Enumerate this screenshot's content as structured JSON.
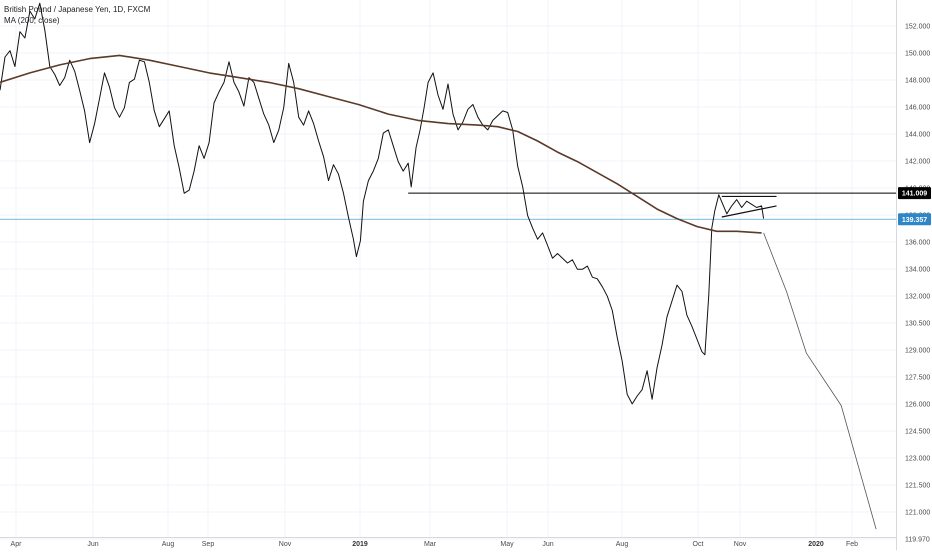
{
  "legend": {
    "title": "British Pound / Japanese Yen, 1D, FXCM",
    "ma": "MA (200, close)"
  },
  "chart_data": {
    "type": "line",
    "title": "British Pound / Japanese Yen, 1D, FXCM",
    "ylim": [
      119.3,
      153.2
    ],
    "y_ticks": [
      "152.000",
      "150.000",
      "148.000",
      "146.000",
      "144.000",
      "142.000",
      "140.000",
      "138.000",
      "136.000",
      "134.000",
      "132.000",
      "130.500",
      "129.000",
      "127.500",
      "126.000",
      "124.500",
      "123.000",
      "121.500",
      "121.000",
      "119.970"
    ],
    "x_ticks": [
      {
        "label": "Apr",
        "bold": false
      },
      {
        "label": "Jun",
        "bold": false
      },
      {
        "label": "Aug",
        "bold": false
      },
      {
        "label": "Sep",
        "bold": false
      },
      {
        "label": "Nov",
        "bold": false
      },
      {
        "label": "2019",
        "bold": true
      },
      {
        "label": "Mar",
        "bold": false
      },
      {
        "label": "May",
        "bold": false
      },
      {
        "label": "Jun",
        "bold": false
      },
      {
        "label": "Aug",
        "bold": false
      },
      {
        "label": "Oct",
        "bold": false
      },
      {
        "label": "Nov",
        "bold": false
      },
      {
        "label": "2020",
        "bold": true
      },
      {
        "label": "Feb",
        "bold": false
      }
    ],
    "series": [
      {
        "values": [
          [
            0,
            147.5
          ],
          [
            5,
            149.6
          ],
          [
            10,
            150.0
          ],
          [
            15,
            149.0
          ],
          [
            20,
            151.2
          ],
          [
            25,
            150.8
          ],
          [
            30,
            152.5
          ],
          [
            35,
            152.0
          ],
          [
            40,
            153.0
          ],
          [
            45,
            151.3
          ],
          [
            50,
            149.0
          ],
          [
            55,
            148.5
          ],
          [
            60,
            147.8
          ],
          [
            65,
            148.3
          ],
          [
            70,
            149.4
          ],
          [
            75,
            148.7
          ],
          [
            80,
            147.5
          ],
          [
            85,
            146.2
          ],
          [
            90,
            144.2
          ],
          [
            95,
            145.4
          ],
          [
            100,
            147.0
          ],
          [
            105,
            148.6
          ],
          [
            110,
            147.7
          ],
          [
            115,
            146.4
          ],
          [
            120,
            145.8
          ],
          [
            125,
            146.4
          ],
          [
            130,
            148.0
          ],
          [
            135,
            148.2
          ],
          [
            140,
            149.4
          ],
          [
            145,
            149.3
          ],
          [
            150,
            148.0
          ],
          [
            155,
            146.2
          ],
          [
            160,
            145.2
          ],
          [
            165,
            145.7
          ],
          [
            170,
            146.2
          ],
          [
            175,
            144.0
          ],
          [
            180,
            142.6
          ],
          [
            185,
            141.0
          ],
          [
            190,
            141.2
          ],
          [
            195,
            142.4
          ],
          [
            200,
            144.0
          ],
          [
            205,
            143.2
          ],
          [
            210,
            144.2
          ],
          [
            215,
            146.7
          ],
          [
            220,
            147.4
          ],
          [
            225,
            148.0
          ],
          [
            230,
            149.3
          ],
          [
            235,
            148.0
          ],
          [
            240,
            147.4
          ],
          [
            245,
            146.5
          ],
          [
            250,
            148.3
          ],
          [
            255,
            148.0
          ],
          [
            260,
            147.0
          ],
          [
            265,
            146.0
          ],
          [
            270,
            145.3
          ],
          [
            275,
            144.2
          ],
          [
            280,
            145.0
          ],
          [
            285,
            146.4
          ],
          [
            290,
            149.2
          ],
          [
            295,
            148.0
          ],
          [
            300,
            145.8
          ],
          [
            305,
            145.3
          ],
          [
            310,
            146.2
          ],
          [
            315,
            145.4
          ],
          [
            320,
            144.3
          ],
          [
            325,
            143.3
          ],
          [
            330,
            141.8
          ],
          [
            335,
            142.8
          ],
          [
            340,
            142.2
          ],
          [
            345,
            141.0
          ],
          [
            350,
            139.5
          ],
          [
            355,
            138.1
          ],
          [
            358,
            137.0
          ],
          [
            362,
            138.0
          ],
          [
            365,
            140.5
          ],
          [
            370,
            141.8
          ],
          [
            375,
            142.4
          ],
          [
            380,
            143.2
          ],
          [
            385,
            144.8
          ],
          [
            390,
            145.0
          ],
          [
            395,
            144.0
          ],
          [
            400,
            143.0
          ],
          [
            405,
            142.4
          ],
          [
            410,
            142.9
          ],
          [
            413,
            141.4
          ],
          [
            418,
            143.9
          ],
          [
            422,
            145.0
          ],
          [
            426,
            146.4
          ],
          [
            430,
            148.0
          ],
          [
            435,
            148.6
          ],
          [
            440,
            147.2
          ],
          [
            445,
            146.3
          ],
          [
            450,
            147.9
          ],
          [
            455,
            146.0
          ],
          [
            460,
            145.0
          ],
          [
            465,
            145.5
          ],
          [
            470,
            146.3
          ],
          [
            475,
            146.6
          ],
          [
            480,
            145.8
          ],
          [
            485,
            145.3
          ],
          [
            490,
            145.0
          ],
          [
            495,
            145.6
          ],
          [
            500,
            145.9
          ],
          [
            505,
            146.2
          ],
          [
            510,
            146.1
          ],
          [
            515,
            145.0
          ],
          [
            520,
            142.7
          ],
          [
            525,
            141.4
          ],
          [
            530,
            139.6
          ],
          [
            535,
            138.8
          ],
          [
            540,
            138.1
          ],
          [
            545,
            138.5
          ],
          [
            550,
            137.7
          ],
          [
            555,
            136.9
          ],
          [
            560,
            137.2
          ],
          [
            565,
            136.9
          ],
          [
            570,
            136.6
          ],
          [
            575,
            136.8
          ],
          [
            580,
            136.2
          ],
          [
            585,
            136.2
          ],
          [
            590,
            136.4
          ],
          [
            595,
            135.7
          ],
          [
            600,
            135.6
          ],
          [
            605,
            135.1
          ],
          [
            610,
            134.5
          ],
          [
            615,
            133.6
          ],
          [
            620,
            131.9
          ],
          [
            625,
            130.4
          ],
          [
            630,
            128.3
          ],
          [
            635,
            127.7
          ],
          [
            640,
            128.2
          ],
          [
            645,
            128.6
          ],
          [
            650,
            129.8
          ],
          [
            655,
            128.0
          ],
          [
            660,
            130.0
          ],
          [
            665,
            131.4
          ],
          [
            670,
            133.2
          ],
          [
            675,
            134.2
          ],
          [
            680,
            135.2
          ],
          [
            685,
            134.8
          ],
          [
            690,
            133.3
          ],
          [
            695,
            132.6
          ],
          [
            700,
            131.8
          ],
          [
            705,
            131.0
          ],
          [
            708,
            130.8
          ],
          [
            712,
            134.6
          ],
          [
            715,
            138.8
          ],
          [
            718,
            139.9
          ],
          [
            722,
            140.9
          ],
          [
            726,
            140.3
          ],
          [
            730,
            139.7
          ],
          [
            735,
            140.2
          ],
          [
            740,
            140.6
          ],
          [
            745,
            140.1
          ],
          [
            750,
            140.5
          ],
          [
            755,
            140.3
          ],
          [
            760,
            140.1
          ],
          [
            765,
            140.2
          ],
          [
            767,
            139.4
          ]
        ]
      },
      {
        "name": "MA (200, close)",
        "values": [
          [
            0,
            148.0
          ],
          [
            30,
            148.6
          ],
          [
            60,
            149.1
          ],
          [
            90,
            149.5
          ],
          [
            120,
            149.7
          ],
          [
            150,
            149.4
          ],
          [
            180,
            149.0
          ],
          [
            210,
            148.6
          ],
          [
            240,
            148.3
          ],
          [
            270,
            148.0
          ],
          [
            300,
            147.6
          ],
          [
            330,
            147.1
          ],
          [
            360,
            146.6
          ],
          [
            390,
            146.0
          ],
          [
            420,
            145.6
          ],
          [
            450,
            145.4
          ],
          [
            480,
            145.3
          ],
          [
            500,
            145.2
          ],
          [
            520,
            144.9
          ],
          [
            540,
            144.3
          ],
          [
            560,
            143.6
          ],
          [
            580,
            143.0
          ],
          [
            600,
            142.3
          ],
          [
            620,
            141.6
          ],
          [
            640,
            140.8
          ],
          [
            660,
            140.0
          ],
          [
            680,
            139.4
          ],
          [
            700,
            138.9
          ],
          [
            720,
            138.6
          ],
          [
            740,
            138.6
          ],
          [
            765,
            138.5
          ]
        ]
      },
      {
        "values": [
          [
            767,
            138.5
          ],
          [
            790,
            134.8
          ],
          [
            810,
            130.9
          ],
          [
            845,
            127.6
          ],
          [
            880,
            119.8
          ]
        ]
      }
    ],
    "lines": [
      {
        "kind": "horizontal",
        "y": 141.009,
        "x_start": 410,
        "color": "#000000"
      },
      {
        "kind": "horizontal",
        "y": 139.357,
        "x_start": 0,
        "color": "#4ba3d3"
      }
    ],
    "annotations": [
      {
        "kind": "segment",
        "from": [
          725,
          140.8
        ],
        "to": [
          780,
          140.8
        ]
      },
      {
        "kind": "segment",
        "from": [
          725,
          139.5
        ],
        "to": [
          780,
          140.2
        ]
      }
    ],
    "price_tags": [
      {
        "label": "141.009",
        "y": 141.009,
        "bg": "#000000",
        "fg": "#ffffff"
      },
      {
        "label": "139.357",
        "y": 139.357,
        "bg": "#2f86c7",
        "fg": "#ffffff"
      }
    ],
    "colors": {
      "price": "#111111",
      "ma": "#5b3a29",
      "projection": "#555555",
      "blue_line": "#4ba3d3"
    }
  }
}
